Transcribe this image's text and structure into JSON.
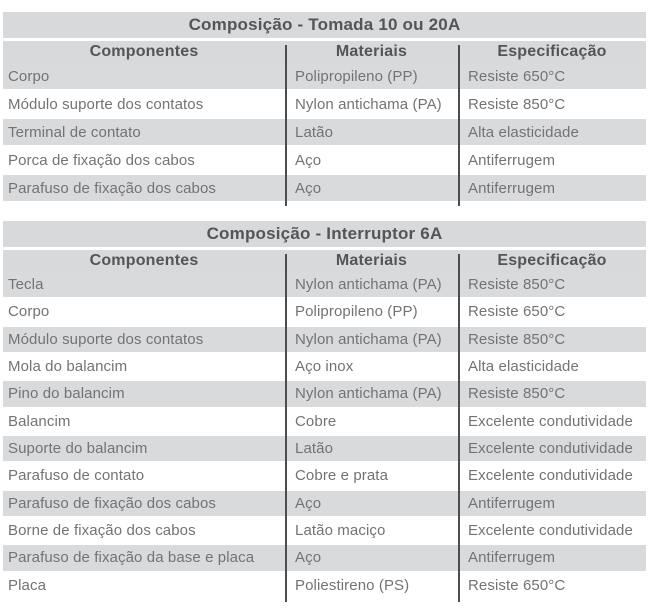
{
  "colors": {
    "band_bg": "#d8d9da",
    "row_stripe_bg": "#d9dadb",
    "row_white_bg": "#ffffff",
    "heading_text": "#545558",
    "cell_text": "#727376",
    "divider_line": "#4c4d4f"
  },
  "tables": [
    {
      "title": "Composição - Tomada 10 ou 20A",
      "columns": [
        "Componentes",
        "Materiais",
        "Especificação"
      ],
      "rows": [
        [
          "Corpo",
          "Polipropileno (PP)",
          "Resiste 650°C"
        ],
        [
          "Módulo suporte dos contatos",
          "Nylon antichama (PA)",
          "Resiste 850°C"
        ],
        [
          "Terminal de contato",
          "Latão",
          "Alta elasticidade"
        ],
        [
          "Porca de fixação dos cabos",
          "Aço",
          "Antiferrugem"
        ],
        [
          "Parafuso de fixação dos cabos",
          "Aço",
          "Antiferrugem"
        ]
      ]
    },
    {
      "title": "Composição - Interruptor 6A",
      "columns": [
        "Componentes",
        "Materiais",
        "Especificação"
      ],
      "rows": [
        [
          "Tecla",
          "Nylon antichama (PA)",
          "Resiste 850°C"
        ],
        [
          "Corpo",
          "Polipropileno (PP)",
          "Resiste 650°C"
        ],
        [
          "Módulo suporte dos contatos",
          "Nylon antichama (PA)",
          "Resiste 850°C"
        ],
        [
          "Mola do balancim",
          "Aço inox",
          "Alta elasticidade"
        ],
        [
          "Pino do balancim",
          "Nylon antichama (PA)",
          "Resiste 850°C"
        ],
        [
          "Balancim",
          "Cobre",
          "Excelente condutividade"
        ],
        [
          "Suporte do balancim",
          "Latão",
          "Excelente condutividade"
        ],
        [
          "Parafuso de contato",
          "Cobre e prata",
          "Excelente condutividade"
        ],
        [
          "Parafuso de fixação dos cabos",
          "Aço",
          "Antiferrugem"
        ],
        [
          "Borne de fixação dos cabos",
          "Latão maciço",
          "Excelente condutividade"
        ],
        [
          "Parafuso de fixação da base e placa",
          "Aço",
          "Antiferrugem"
        ],
        [
          "Placa",
          "Poliestireno (PS)",
          "Resiste 650°C"
        ]
      ]
    }
  ]
}
